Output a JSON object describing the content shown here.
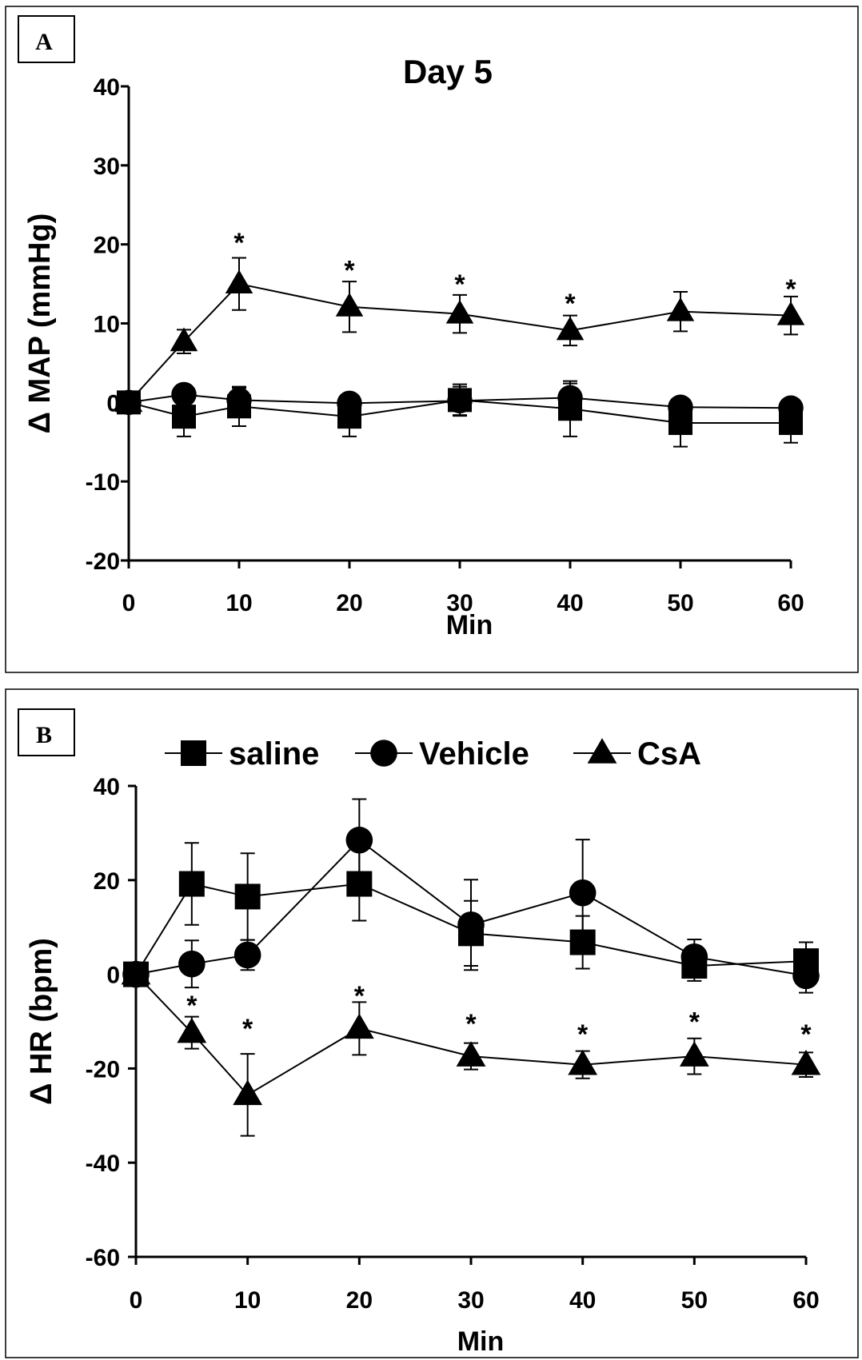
{
  "colors": {
    "ink": "#000000",
    "background": "#ffffff"
  },
  "chart_data": [
    {
      "panel_label": "A",
      "type": "line",
      "title": "Day 5",
      "xlabel": "Min",
      "ylabel": "Δ MAP (mmHg)",
      "xlim": [
        0,
        60
      ],
      "ylim": [
        -20,
        40
      ],
      "xticks": [
        0,
        10,
        20,
        30,
        40,
        50,
        60
      ],
      "yticks": [
        -20,
        -10,
        0,
        10,
        20,
        30,
        40
      ],
      "x": [
        0,
        5,
        10,
        20,
        30,
        40,
        50,
        60
      ],
      "grid": false,
      "legend": "none",
      "series": [
        {
          "marker": "square",
          "values": [
            0,
            -1.8,
            -0.5,
            -1.8,
            0.3,
            -0.8,
            -2.6,
            -2.6
          ],
          "errors": [
            0,
            2.5,
            2.5,
            2.5,
            2.0,
            3.5,
            3.0,
            2.5
          ]
        },
        {
          "marker": "circle",
          "values": [
            0,
            1.0,
            0.3,
            -0.1,
            0.2,
            0.6,
            -0.6,
            -0.7
          ],
          "errors": [
            0,
            0,
            1.5,
            0,
            1.8,
            1.8,
            0,
            0
          ]
        },
        {
          "marker": "triangle",
          "values": [
            0,
            7.7,
            15.0,
            12.1,
            11.2,
            9.1,
            11.5,
            11.0
          ],
          "errors": [
            0,
            1.5,
            3.3,
            3.2,
            2.4,
            1.9,
            2.5,
            2.4
          ]
        }
      ],
      "annotations": [
        {
          "text": "*",
          "x": 10,
          "y": 20.9
        },
        {
          "text": "*",
          "x": 20,
          "y": 17.4
        },
        {
          "text": "*",
          "x": 30,
          "y": 15.6
        },
        {
          "text": "*",
          "x": 40,
          "y": 13.2
        },
        {
          "text": "*",
          "x": 60,
          "y": 15.0
        }
      ]
    },
    {
      "panel_label": "B",
      "type": "line",
      "title": "",
      "xlabel": "Min",
      "ylabel": "Δ HR (bpm)",
      "xlim": [
        0,
        60
      ],
      "ylim": [
        -60,
        40
      ],
      "xticks": [
        0,
        10,
        20,
        30,
        40,
        50,
        60
      ],
      "yticks": [
        -60,
        -40,
        -20,
        0,
        20,
        40
      ],
      "x": [
        0,
        5,
        10,
        20,
        30,
        40,
        50,
        60
      ],
      "grid": false,
      "legend": "top",
      "series": [
        {
          "name": "saline",
          "marker": "square",
          "values": [
            0,
            19.2,
            16.5,
            19.2,
            8.7,
            6.8,
            1.8,
            2.8
          ],
          "errors": [
            0,
            8.7,
            9.2,
            7.8,
            6.9,
            5.6,
            3.2,
            4.0
          ]
        },
        {
          "name": "Vehicle",
          "marker": "circle",
          "values": [
            0,
            2.2,
            4.1,
            28.5,
            10.5,
            17.3,
            3.7,
            -0.3
          ],
          "errors": [
            0,
            5.0,
            3.2,
            8.7,
            9.6,
            11.3,
            3.7,
            3.6
          ]
        },
        {
          "name": "CsA",
          "marker": "triangle",
          "values": [
            0,
            -12.4,
            -25.6,
            -11.5,
            -17.4,
            -19.2,
            -17.4,
            -19.2
          ],
          "errors": [
            0,
            3.4,
            8.7,
            5.6,
            2.8,
            2.9,
            3.8,
            2.6
          ]
        }
      ],
      "annotations": [
        {
          "text": "*",
          "x": 5,
          "y": -5.5
        },
        {
          "text": "*",
          "x": 10,
          "y": -10.4
        },
        {
          "text": "*",
          "x": 20,
          "y": -3.5
        },
        {
          "text": "*",
          "x": 30,
          "y": -9.4
        },
        {
          "text": "*",
          "x": 40,
          "y": -11.6
        },
        {
          "text": "*",
          "x": 50,
          "y": -9.0
        },
        {
          "text": "*",
          "x": 60,
          "y": -11.6
        }
      ]
    }
  ]
}
